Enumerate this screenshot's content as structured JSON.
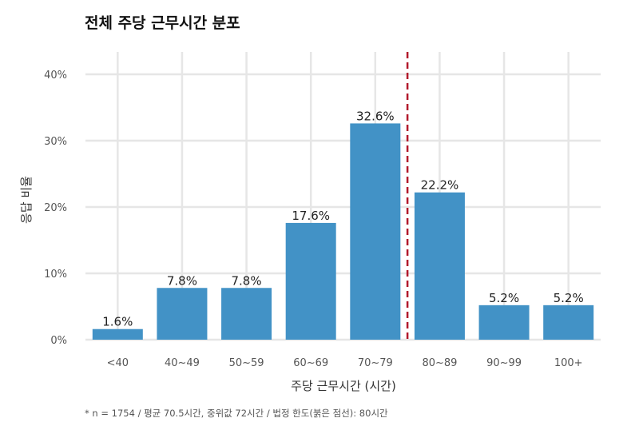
{
  "chart_data": {
    "type": "bar",
    "title": "전체 주당 근무시간 분포",
    "xlabel": "주당 근무시간 (시간)",
    "ylabel": "응답 비율",
    "categories": [
      "<40",
      "40~49",
      "50~59",
      "60~69",
      "70~79",
      "80~89",
      "90~99",
      "100+"
    ],
    "values": [
      1.6,
      7.8,
      7.8,
      17.6,
      32.6,
      22.2,
      5.2,
      5.2
    ],
    "data_labels": [
      "1.6%",
      "7.8%",
      "7.8%",
      "17.6%",
      "32.6%",
      "22.2%",
      "5.2%",
      "5.2%"
    ],
    "ylim": [
      0,
      43
    ],
    "yticks": [
      0,
      10,
      20,
      30,
      40
    ],
    "ytick_labels": [
      "0%",
      "10%",
      "20%",
      "30%",
      "40%"
    ],
    "grid": true,
    "bar_color": "#4292c6",
    "reference_line": {
      "x": 79.5,
      "between_categories": [
        "70~79",
        "80~89"
      ],
      "style": "dashed",
      "color": "#b2182b"
    },
    "footnote": "* n = 1754 / 평균 70.5시간, 중위값 72시간 / 법정 한도(붉은 점선): 80시간"
  }
}
